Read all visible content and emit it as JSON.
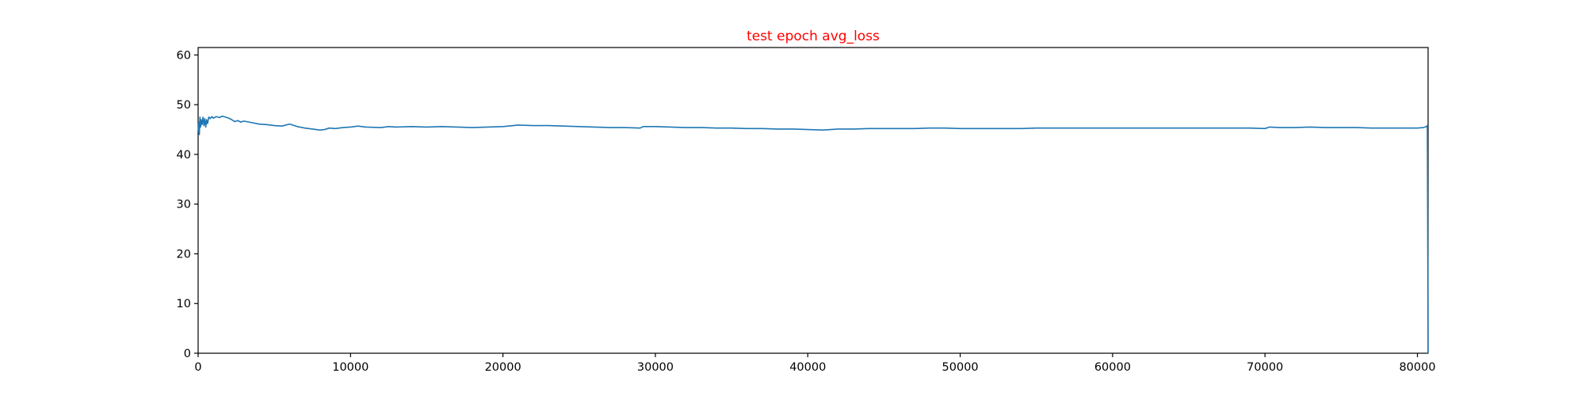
{
  "chart_data": {
    "type": "line",
    "title": "test epoch avg_loss",
    "title_color": "#ff0000",
    "line_color": "#1f77b4",
    "xlim": [
      0,
      80700
    ],
    "ylim": [
      0,
      61.5
    ],
    "grid": false,
    "xticks": [
      0,
      10000,
      20000,
      30000,
      40000,
      50000,
      60000,
      70000,
      80000
    ],
    "yticks": [
      0,
      10,
      20,
      30,
      40,
      50,
      60
    ],
    "series": [
      {
        "x": [
          0,
          40,
          80,
          120,
          160,
          200,
          260,
          320,
          380,
          440,
          500,
          560,
          620,
          700,
          800,
          900,
          1000,
          1200,
          1400,
          1600,
          1800,
          2000,
          2200,
          2400,
          2600,
          2800,
          3000,
          3500,
          4000,
          4500,
          5000,
          5500,
          6000,
          6500,
          7000,
          7500,
          8000,
          8300,
          8600,
          9000,
          9500,
          10000,
          10500,
          11000,
          12000,
          12500,
          13000,
          14000,
          15000,
          16000,
          17000,
          18000,
          19000,
          20000,
          21000,
          22000,
          23000,
          24000,
          25000,
          26000,
          27000,
          28000,
          29000,
          29200,
          30000,
          31000,
          32000,
          33000,
          34000,
          35000,
          36000,
          37000,
          38000,
          39000,
          40000,
          41000,
          42000,
          43000,
          44000,
          45000,
          46000,
          47000,
          48000,
          49000,
          50000,
          51000,
          52000,
          53000,
          54000,
          55000,
          56000,
          57000,
          58000,
          59000,
          60000,
          61000,
          62000,
          63000,
          64000,
          65000,
          66000,
          67000,
          68000,
          69000,
          70000,
          70300,
          71000,
          72000,
          73000,
          74000,
          75000,
          76000,
          77000,
          78000,
          79000,
          80000,
          80400,
          80600,
          80650,
          80680,
          80700
        ],
        "y": [
          44.5,
          46.5,
          44.0,
          47.5,
          45.5,
          47.0,
          46.0,
          47.5,
          45.8,
          47.2,
          45.5,
          47.0,
          46.2,
          47.5,
          47.2,
          47.6,
          47.3,
          47.6,
          47.4,
          47.7,
          47.5,
          47.3,
          47.0,
          46.6,
          46.8,
          46.5,
          46.7,
          46.4,
          46.1,
          46.0,
          45.8,
          45.7,
          46.1,
          45.6,
          45.3,
          45.1,
          44.9,
          45.0,
          45.3,
          45.2,
          45.4,
          45.5,
          45.7,
          45.5,
          45.4,
          45.6,
          45.5,
          45.6,
          45.5,
          45.6,
          45.5,
          45.4,
          45.5,
          45.6,
          45.9,
          45.8,
          45.8,
          45.7,
          45.6,
          45.5,
          45.4,
          45.4,
          45.3,
          45.6,
          45.6,
          45.5,
          45.4,
          45.4,
          45.3,
          45.3,
          45.2,
          45.2,
          45.1,
          45.1,
          45.0,
          44.9,
          45.1,
          45.1,
          45.2,
          45.2,
          45.2,
          45.2,
          45.3,
          45.3,
          45.2,
          45.2,
          45.2,
          45.2,
          45.2,
          45.3,
          45.3,
          45.3,
          45.3,
          45.3,
          45.3,
          45.3,
          45.3,
          45.3,
          45.3,
          45.3,
          45.3,
          45.3,
          45.3,
          45.3,
          45.2,
          45.5,
          45.4,
          45.4,
          45.5,
          45.4,
          45.4,
          45.4,
          45.3,
          45.3,
          45.3,
          45.3,
          45.4,
          45.6,
          45.8,
          20.0,
          0.0
        ]
      }
    ]
  }
}
